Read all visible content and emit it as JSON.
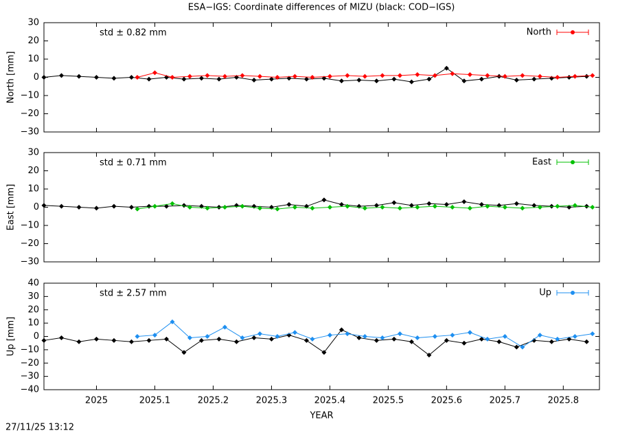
{
  "title": "ESA−IGS: Coordinate differences of MIZU (black: COD−IGS)",
  "timestamp": "27/11/25 13:12",
  "chart_data": [
    {
      "type": "line",
      "ylabel": "North [mm]",
      "annotation": "std ± 0.82 mm",
      "legend": "top-right",
      "xlim": [
        2024.91,
        2025.862
      ],
      "xticks": [
        2025,
        2025.1,
        2025.2,
        2025.3,
        2025.4,
        2025.5,
        2025.6,
        2025.7,
        2025.8
      ],
      "ylim": [
        -30,
        30
      ],
      "yticks": [
        {
          "value": -30,
          "label": "−30"
        },
        {
          "value": -20,
          "label": "−20"
        },
        {
          "value": -10,
          "label": "−10"
        },
        0,
        10,
        20,
        30
      ],
      "series": [
        {
          "color": "#000000",
          "x": [
            2024.91,
            2024.94,
            2024.97,
            2025.0,
            2025.03,
            2025.06,
            2025.09,
            2025.12,
            2025.15,
            2025.18,
            2025.21,
            2025.24,
            2025.27,
            2025.3,
            2025.33,
            2025.36,
            2025.39,
            2025.42,
            2025.45,
            2025.48,
            2025.51,
            2025.54,
            2025.57,
            2025.6,
            2025.63,
            2025.66,
            2025.69,
            2025.72,
            2025.75,
            2025.78,
            2025.81,
            2025.84
          ],
          "values": [
            0,
            1,
            0.5,
            0,
            -0.5,
            0,
            -1,
            0,
            -1,
            -0.5,
            -1,
            0,
            -1.5,
            -1,
            -0.5,
            -1,
            -0.5,
            -2,
            -1.5,
            -2,
            -1,
            -2.5,
            -1,
            5,
            -2,
            -1,
            0.5,
            -1.5,
            -1,
            -0.5,
            0,
            0.5
          ]
        },
        {
          "name": "North",
          "color": "#ff0000",
          "x": [
            2025.07,
            2025.1,
            2025.13,
            2025.16,
            2025.19,
            2025.22,
            2025.25,
            2025.28,
            2025.31,
            2025.34,
            2025.37,
            2025.4,
            2025.43,
            2025.46,
            2025.49,
            2025.52,
            2025.55,
            2025.58,
            2025.61,
            2025.64,
            2025.67,
            2025.7,
            2025.73,
            2025.76,
            2025.79,
            2025.82,
            2025.85
          ],
          "values": [
            0,
            2.5,
            0,
            0.5,
            1,
            0.5,
            1,
            0.5,
            0,
            0.5,
            0,
            0.5,
            1,
            0.5,
            1,
            1,
            1.5,
            1,
            2,
            1.5,
            1,
            0.5,
            1,
            0.5,
            0,
            0.5,
            1
          ]
        }
      ]
    },
    {
      "type": "line",
      "ylabel": "East [mm]",
      "annotation": "std ± 0.71 mm",
      "legend": "top-right",
      "xlim": [
        2024.91,
        2025.862
      ],
      "xticks": [
        2025,
        2025.1,
        2025.2,
        2025.3,
        2025.4,
        2025.5,
        2025.6,
        2025.7,
        2025.8
      ],
      "ylim": [
        -30,
        30
      ],
      "yticks": [
        {
          "value": -30,
          "label": "−30"
        },
        {
          "value": -20,
          "label": "−20"
        },
        {
          "value": -10,
          "label": "−10"
        },
        0,
        10,
        20,
        30
      ],
      "series": [
        {
          "color": "#000000",
          "x": [
            2024.91,
            2024.94,
            2024.97,
            2025.0,
            2025.03,
            2025.06,
            2025.09,
            2025.12,
            2025.15,
            2025.18,
            2025.21,
            2025.24,
            2025.27,
            2025.3,
            2025.33,
            2025.36,
            2025.39,
            2025.42,
            2025.45,
            2025.48,
            2025.51,
            2025.54,
            2025.57,
            2025.6,
            2025.63,
            2025.66,
            2025.69,
            2025.72,
            2025.75,
            2025.78,
            2025.81,
            2025.84
          ],
          "values": [
            1,
            0.5,
            0,
            -0.5,
            0.5,
            0,
            0.5,
            0.5,
            1,
            0.5,
            0,
            1,
            0.5,
            0,
            1.5,
            0.5,
            4,
            1.5,
            0.5,
            1,
            2.5,
            1,
            2,
            1.5,
            3,
            1.5,
            1,
            2,
            1,
            0.5,
            0,
            0.5
          ]
        },
        {
          "name": "East",
          "color": "#00c000",
          "x": [
            2025.07,
            2025.1,
            2025.13,
            2025.16,
            2025.19,
            2025.22,
            2025.25,
            2025.28,
            2025.31,
            2025.34,
            2025.37,
            2025.4,
            2025.43,
            2025.46,
            2025.49,
            2025.52,
            2025.55,
            2025.58,
            2025.61,
            2025.64,
            2025.67,
            2025.7,
            2025.73,
            2025.76,
            2025.79,
            2025.82,
            2025.85
          ],
          "values": [
            -1,
            0.5,
            2,
            0,
            -0.5,
            0,
            0.5,
            -0.5,
            -1,
            0,
            -0.5,
            0,
            0.5,
            -0.5,
            0,
            -0.5,
            0,
            0.5,
            0,
            -0.5,
            0.5,
            0,
            -0.5,
            0,
            0.5,
            1,
            0
          ]
        }
      ]
    },
    {
      "type": "line",
      "ylabel": "Up [mm]",
      "xlabel": "YEAR",
      "annotation": "std ± 2.57 mm",
      "legend": "top-right",
      "xlim": [
        2024.91,
        2025.862
      ],
      "xticks": [
        2025,
        2025.1,
        2025.2,
        2025.3,
        2025.4,
        2025.5,
        2025.6,
        2025.7,
        2025.8
      ],
      "ylim": [
        -40,
        40
      ],
      "yticks": [
        {
          "value": -40,
          "label": "−40"
        },
        {
          "value": -30,
          "label": "−30"
        },
        {
          "value": -20,
          "label": "−20"
        },
        {
          "value": -10,
          "label": "−10"
        },
        0,
        10,
        20,
        30,
        40
      ],
      "series": [
        {
          "color": "#000000",
          "x": [
            2024.91,
            2024.94,
            2024.97,
            2025.0,
            2025.03,
            2025.06,
            2025.09,
            2025.12,
            2025.15,
            2025.18,
            2025.21,
            2025.24,
            2025.27,
            2025.3,
            2025.33,
            2025.36,
            2025.39,
            2025.42,
            2025.45,
            2025.48,
            2025.51,
            2025.54,
            2025.57,
            2025.6,
            2025.63,
            2025.66,
            2025.69,
            2025.72,
            2025.75,
            2025.78,
            2025.81,
            2025.84
          ],
          "values": [
            -3,
            -1,
            -4,
            -2,
            -3,
            -4,
            -3,
            -2,
            -12,
            -3,
            -2,
            -4,
            -1,
            -2,
            1,
            -3,
            -12,
            5,
            -1,
            -3,
            -2,
            -4,
            -14,
            -3,
            -5,
            -2,
            -4,
            -8,
            -3,
            -4,
            -2,
            -4
          ]
        },
        {
          "name": "Up",
          "color": "#1e8ff0",
          "x": [
            2025.07,
            2025.1,
            2025.13,
            2025.16,
            2025.19,
            2025.22,
            2025.25,
            2025.28,
            2025.31,
            2025.34,
            2025.37,
            2025.4,
            2025.43,
            2025.46,
            2025.49,
            2025.52,
            2025.55,
            2025.58,
            2025.61,
            2025.64,
            2025.67,
            2025.7,
            2025.73,
            2025.76,
            2025.79,
            2025.82,
            2025.85
          ],
          "values": [
            0,
            1,
            11,
            -1,
            0,
            7,
            -1,
            2,
            0,
            3,
            -2,
            1,
            2,
            0,
            -1,
            2,
            -1,
            0,
            1,
            3,
            -2,
            0,
            -8,
            1,
            -2,
            0,
            2
          ]
        }
      ]
    }
  ]
}
